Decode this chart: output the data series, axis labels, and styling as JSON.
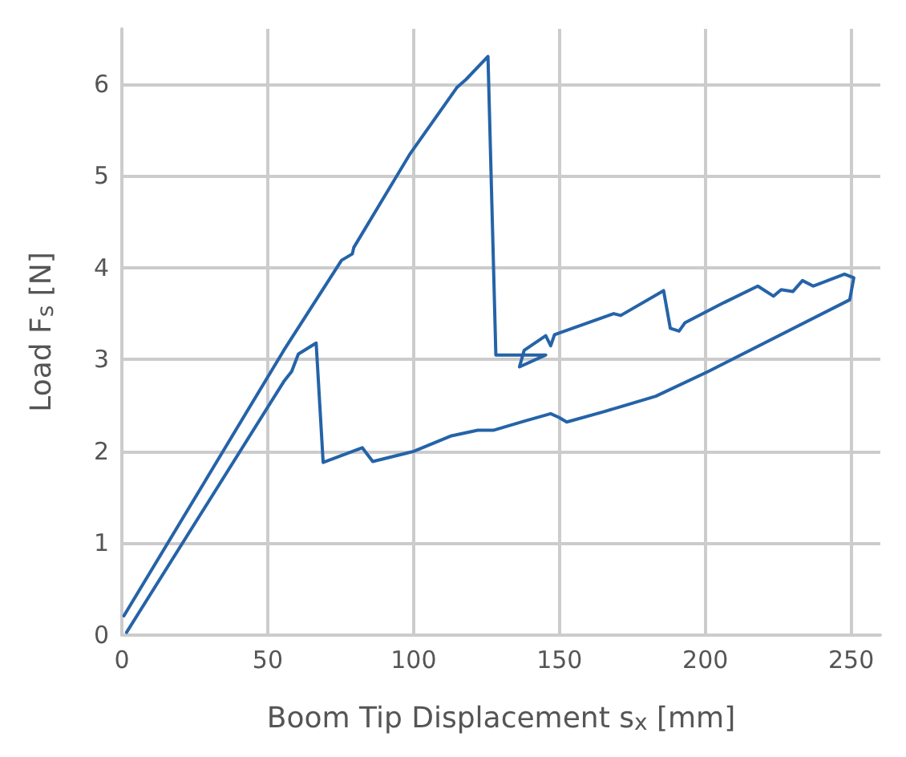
{
  "chart_data": {
    "type": "line",
    "xlabel": "Boom Tip Displacement s$_{x}$ [mm]",
    "ylabel": "Load F$_{s}$ [N]",
    "xlim": [
      0,
      260
    ],
    "ylim": [
      0,
      6.6
    ],
    "xticks": [
      0,
      50,
      100,
      150,
      200,
      250
    ],
    "yticks": [
      0,
      1,
      2,
      3,
      4,
      5,
      6
    ],
    "grid": true,
    "marker": "none",
    "line_style": "solid",
    "series": [
      {
        "color": "#2563a8",
        "x": [
          0.7,
          55.5,
          75.3,
          79,
          79.5,
          98.6,
          114.8,
          118,
          125.5,
          128.2,
          145.3,
          136.3,
          137.9,
          145.3,
          147,
          148.3,
          168.6,
          171,
          185.7,
          188,
          191,
          193,
          206.4,
          218,
          223.4,
          226,
          230,
          233.3,
          237,
          247.7,
          250.9,
          249.5,
          201,
          183,
          165,
          152.5,
          149.8,
          147,
          138,
          127.3,
          122,
          113,
          100,
          86,
          82.4,
          69,
          66.6,
          60.5,
          58.2,
          55.5,
          1.6
        ],
        "values": [
          0.21,
          3.1,
          4.08,
          4.15,
          4.22,
          5.23,
          5.96,
          6.05,
          6.3,
          3.05,
          3.05,
          2.92,
          3.1,
          3.26,
          3.15,
          3.27,
          3.5,
          3.48,
          3.75,
          3.34,
          3.31,
          3.4,
          3.62,
          3.8,
          3.69,
          3.76,
          3.74,
          3.86,
          3.8,
          3.93,
          3.89,
          3.65,
          2.87,
          2.6,
          2.43,
          2.32,
          2.37,
          2.41,
          2.33,
          2.23,
          2.23,
          2.17,
          2.0,
          1.89,
          2.04,
          1.88,
          3.18,
          3.06,
          2.87,
          2.76,
          0.03
        ]
      }
    ]
  }
}
